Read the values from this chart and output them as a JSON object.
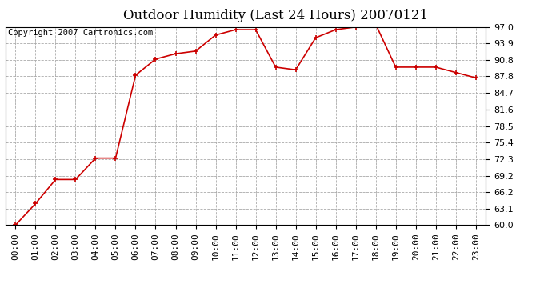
{
  "title": "Outdoor Humidity (Last 24 Hours) 20070121",
  "copyright": "Copyright 2007 Cartronics.com",
  "x_labels": [
    "00:00",
    "01:00",
    "02:00",
    "03:00",
    "04:00",
    "05:00",
    "06:00",
    "07:00",
    "08:00",
    "09:00",
    "10:00",
    "11:00",
    "12:00",
    "13:00",
    "14:00",
    "15:00",
    "16:00",
    "17:00",
    "18:00",
    "19:00",
    "20:00",
    "21:00",
    "22:00",
    "23:00"
  ],
  "y_values": [
    60.0,
    64.0,
    68.5,
    68.5,
    72.5,
    72.5,
    88.0,
    91.0,
    92.0,
    92.5,
    95.5,
    96.5,
    96.5,
    89.5,
    89.0,
    95.0,
    96.5,
    97.0,
    97.5,
    89.5,
    89.5,
    89.5,
    88.5,
    87.5
  ],
  "ylim_min": 60.0,
  "ylim_max": 97.0,
  "yticks": [
    60.0,
    63.1,
    66.2,
    69.2,
    72.3,
    75.4,
    78.5,
    81.6,
    84.7,
    87.8,
    90.8,
    93.9,
    97.0
  ],
  "line_color": "#cc0000",
  "marker": "+",
  "marker_size": 5,
  "marker_linewidth": 1.2,
  "line_width": 1.2,
  "background_color": "#ffffff",
  "plot_bg_color": "#ffffff",
  "grid_color": "#aaaaaa",
  "title_fontsize": 12,
  "tick_fontsize": 8,
  "copyright_fontsize": 7.5
}
